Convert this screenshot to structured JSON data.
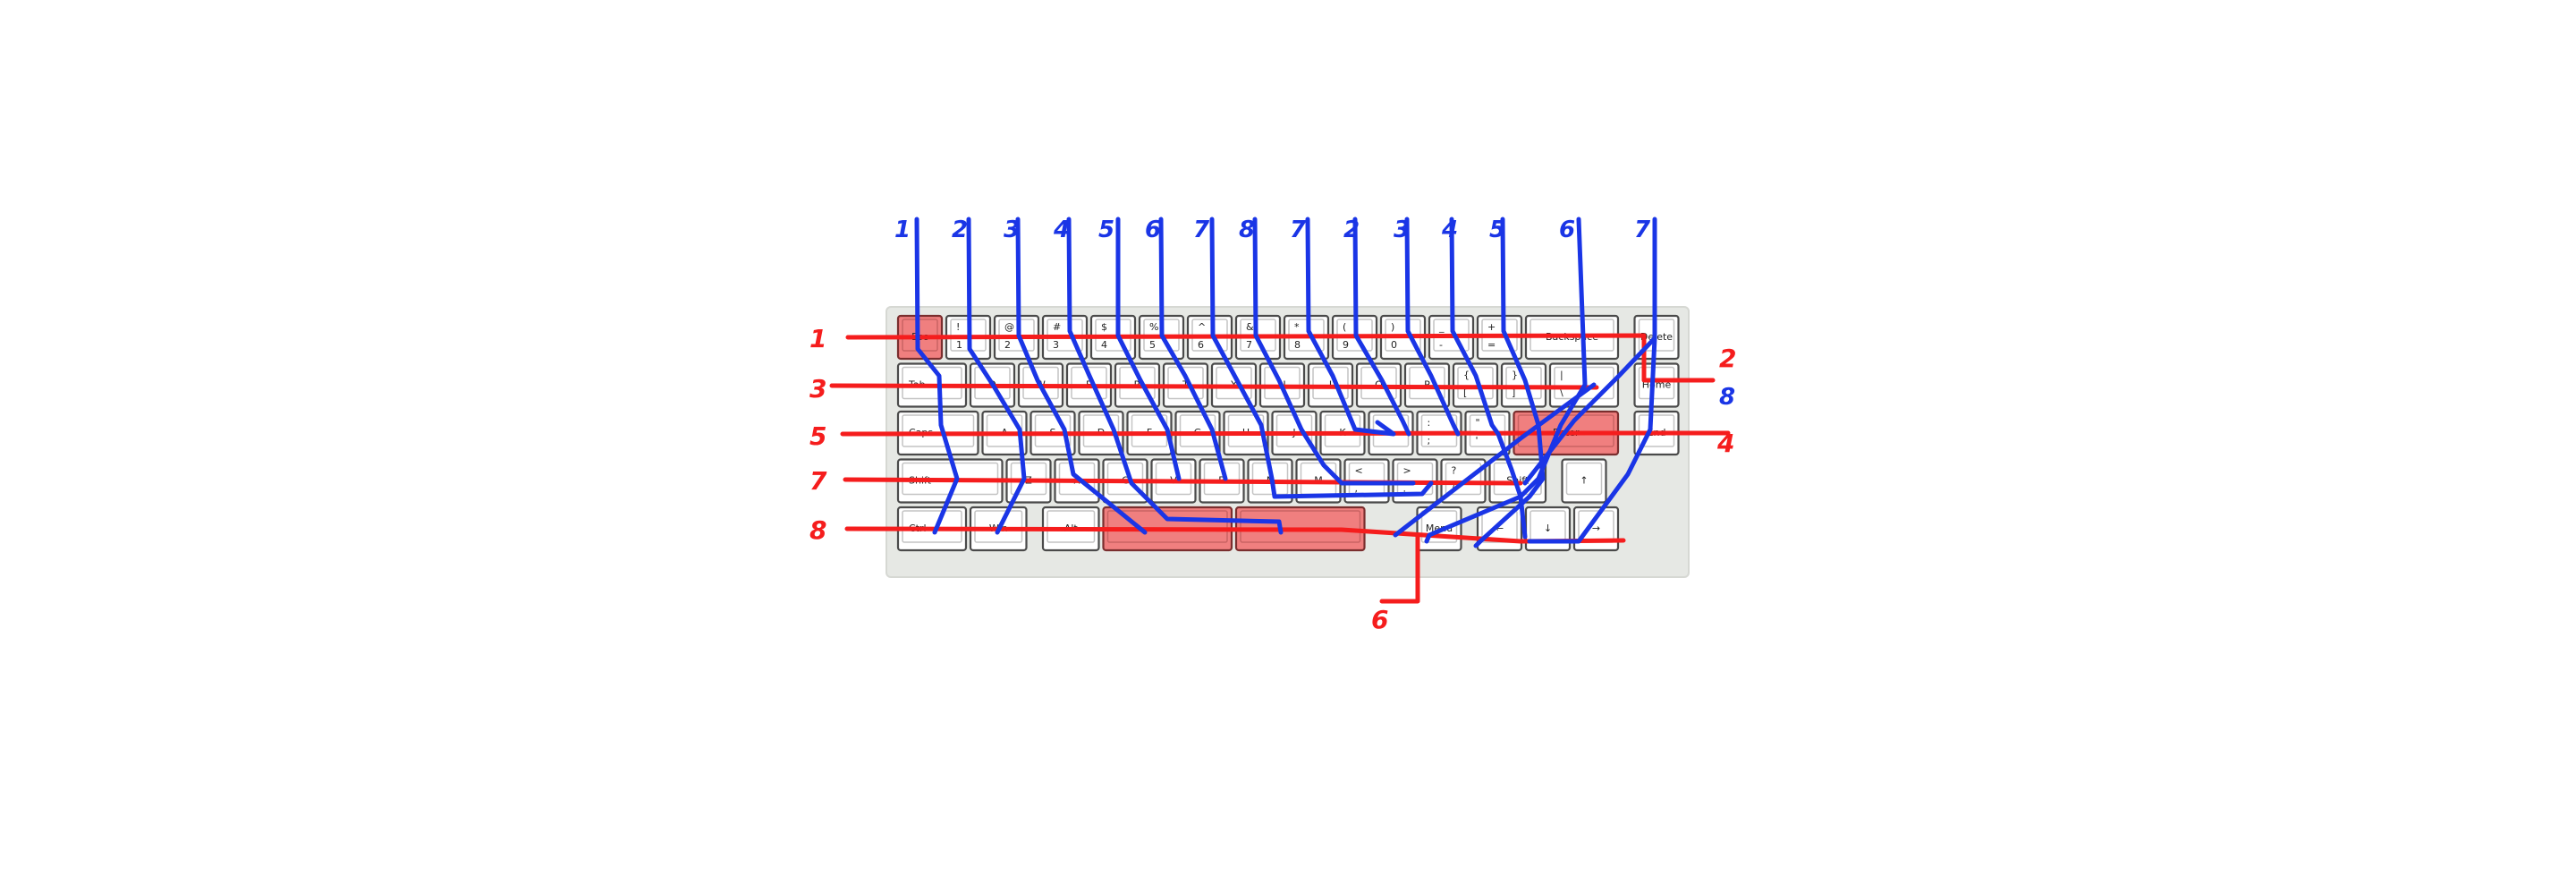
{
  "colors": {
    "case": "#e6e8e4",
    "key": "#ffffff",
    "key_highlight": "#f07f7f",
    "row_wire": "#f51d1d",
    "column_wire": "#1a35e6"
  },
  "keyboard": {
    "rows": [
      [
        {
          "top": "",
          "bottom": "Esc",
          "w": 1,
          "hl": true
        },
        {
          "top": "!",
          "bottom": "1",
          "w": 1
        },
        {
          "top": "@",
          "bottom": "2",
          "w": 1
        },
        {
          "top": "#",
          "bottom": "3",
          "w": 1
        },
        {
          "top": "$",
          "bottom": "4",
          "w": 1
        },
        {
          "top": "%",
          "bottom": "5",
          "w": 1
        },
        {
          "top": "^",
          "bottom": "6",
          "w": 1
        },
        {
          "top": "&",
          "bottom": "7",
          "w": 1
        },
        {
          "top": "*",
          "bottom": "8",
          "w": 1
        },
        {
          "top": "(",
          "bottom": "9",
          "w": 1
        },
        {
          "top": ")",
          "bottom": "0",
          "w": 1
        },
        {
          "top": "_",
          "bottom": "-",
          "w": 1
        },
        {
          "top": "+",
          "bottom": "=",
          "w": 1
        },
        {
          "top": "",
          "bottom": "Backspace",
          "w": 2
        },
        {
          "top": "",
          "bottom": "Delete",
          "w": 1,
          "gap": 0.25
        }
      ],
      [
        {
          "top": "",
          "bottom": "Tab",
          "w": 1.5
        },
        {
          "top": "",
          "bottom": "Q",
          "w": 1
        },
        {
          "top": "",
          "bottom": "W",
          "w": 1
        },
        {
          "top": "",
          "bottom": "E",
          "w": 1
        },
        {
          "top": "",
          "bottom": "R",
          "w": 1
        },
        {
          "top": "",
          "bottom": "T",
          "w": 1
        },
        {
          "top": "",
          "bottom": "Y",
          "w": 1
        },
        {
          "top": "",
          "bottom": "U",
          "w": 1
        },
        {
          "top": "",
          "bottom": "I",
          "w": 1
        },
        {
          "top": "",
          "bottom": "O",
          "w": 1
        },
        {
          "top": "",
          "bottom": "P",
          "w": 1
        },
        {
          "top": "{",
          "bottom": "[",
          "w": 1
        },
        {
          "top": "}",
          "bottom": "]",
          "w": 1
        },
        {
          "top": "|",
          "bottom": "\\",
          "w": 1.5
        },
        {
          "top": "",
          "bottom": "Home",
          "w": 1,
          "gap": 0.25
        }
      ],
      [
        {
          "top": "",
          "bottom": "Caps",
          "w": 1.75
        },
        {
          "top": "",
          "bottom": "A",
          "w": 1
        },
        {
          "top": "",
          "bottom": "S",
          "w": 1
        },
        {
          "top": "",
          "bottom": "D",
          "w": 1
        },
        {
          "top": "",
          "bottom": "F",
          "w": 1
        },
        {
          "top": "",
          "bottom": "G",
          "w": 1
        },
        {
          "top": "",
          "bottom": "H",
          "w": 1
        },
        {
          "top": "",
          "bottom": "J",
          "w": 1
        },
        {
          "top": "",
          "bottom": "K",
          "w": 1
        },
        {
          "top": "",
          "bottom": "L",
          "w": 1
        },
        {
          "top": ":",
          "bottom": ";",
          "w": 1
        },
        {
          "top": "\"",
          "bottom": "'",
          "w": 1
        },
        {
          "top": "",
          "bottom": "Enter",
          "w": 2.25,
          "hl": true
        },
        {
          "top": "",
          "bottom": "End",
          "w": 1,
          "gap": 0.25
        }
      ],
      [
        {
          "top": "",
          "bottom": "Shift",
          "w": 2.25
        },
        {
          "top": "",
          "bottom": "Z",
          "w": 1
        },
        {
          "top": "",
          "bottom": "X",
          "w": 1
        },
        {
          "top": "",
          "bottom": "C",
          "w": 1
        },
        {
          "top": "",
          "bottom": "V",
          "w": 1
        },
        {
          "top": "",
          "bottom": "B",
          "w": 1
        },
        {
          "top": "",
          "bottom": "N",
          "w": 1
        },
        {
          "top": "",
          "bottom": "M",
          "w": 1
        },
        {
          "top": "<",
          "bottom": ",",
          "w": 1
        },
        {
          "top": ">",
          "bottom": ".",
          "w": 1
        },
        {
          "top": "?",
          "bottom": "/",
          "w": 1
        },
        {
          "top": "",
          "bottom": "Shift",
          "w": 1.25
        },
        {
          "top": "",
          "bottom": "↑",
          "w": 1,
          "gap": 0.25
        }
      ],
      [
        {
          "top": "",
          "bottom": "Ctrl",
          "w": 1.5
        },
        {
          "top": "",
          "bottom": "Win",
          "w": 1.25
        },
        {
          "top": "",
          "bottom": "Alt",
          "w": 1.25,
          "gap": 0.25
        },
        {
          "top": "",
          "bottom": "",
          "w": 2.75,
          "hl": true
        },
        {
          "top": "",
          "bottom": "",
          "w": 2.75,
          "hl": true
        },
        {
          "top": "",
          "bottom": "Menu",
          "w": 1,
          "gap": 1.0
        },
        {
          "top": "",
          "bottom": "←",
          "w": 1,
          "gap": 0.25
        },
        {
          "top": "",
          "bottom": "↓",
          "w": 1
        },
        {
          "top": "",
          "bottom": "→",
          "w": 1
        }
      ]
    ]
  },
  "annotations": {
    "column_labels": [
      "1",
      "2",
      "3",
      "4",
      "5",
      "6",
      "7",
      "8",
      "7",
      "2",
      "3",
      "4",
      "5",
      "6",
      "7"
    ],
    "row_labels": [
      "1",
      "3",
      "5",
      "7",
      "8"
    ],
    "right_labels": [
      "2",
      "8",
      "4"
    ],
    "bottom_label": "6"
  }
}
